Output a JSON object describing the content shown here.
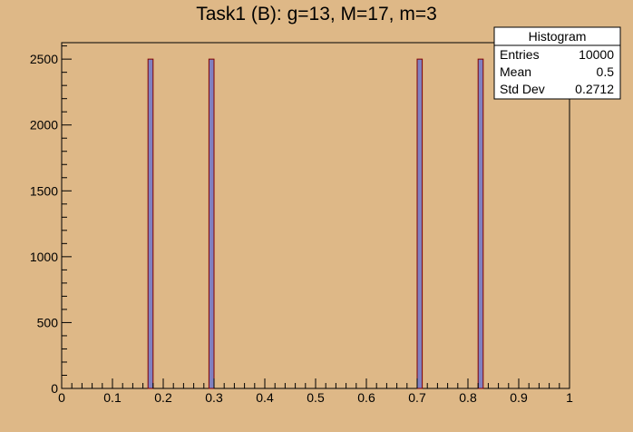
{
  "chart_data": {
    "type": "bar",
    "title": "Task1 (B): g=13, M=17, m=3",
    "xlabel": "",
    "ylabel": "",
    "xlim": [
      0,
      1
    ],
    "ylim": [
      0,
      2625
    ],
    "bin_width": 0.01,
    "x_ticks": [
      "0",
      "0.1",
      "0.2",
      "0.3",
      "0.4",
      "0.5",
      "0.6",
      "0.7",
      "0.8",
      "0.9",
      "1"
    ],
    "y_ticks": [
      "0",
      "500",
      "1000",
      "1500",
      "2000",
      "2500"
    ],
    "series": [
      {
        "x": [
          0.17,
          0.29,
          0.7,
          0.82
        ],
        "values": [
          2500,
          2500,
          2500,
          2500
        ]
      }
    ],
    "colors": {
      "bar_fill": "#8080c0",
      "bar_edge": "#800000",
      "frame": "#000000",
      "background": "#deb887",
      "plot_background": "#deb887"
    }
  },
  "stats_box": {
    "title": "Histogram",
    "rows": [
      {
        "label": "Entries",
        "value": "10000"
      },
      {
        "label": "Mean",
        "value": "0.5"
      },
      {
        "label": "Std Dev",
        "value": "0.2712"
      }
    ]
  }
}
